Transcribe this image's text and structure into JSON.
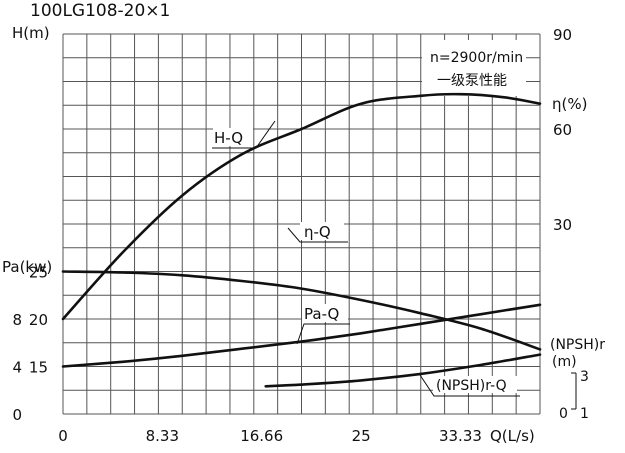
{
  "chart_data": {
    "type": "line",
    "title": "100LG108-20×1",
    "annotation": [
      "n=2900r/min",
      "一级泵性能"
    ],
    "x_axis": {
      "label": "Q(L/s)",
      "range": [
        0,
        40
      ],
      "ticks": [
        0,
        8.33,
        16.66,
        25,
        33.33
      ],
      "tick_labels": [
        "0",
        "8.33",
        "16.66",
        "25",
        "33.33"
      ]
    },
    "left_axis_head": {
      "label": "H(m)",
      "ticks": [
        15,
        20,
        25
      ],
      "tick_labels": [
        "15",
        "20",
        "25"
      ]
    },
    "left_axis_power": {
      "label": "Pa(kw)",
      "ticks": [
        0,
        4,
        8
      ],
      "tick_labels": [
        "0",
        "4",
        "8"
      ]
    },
    "right_axis_eff": {
      "label": "η(%)",
      "ticks": [
        30,
        60,
        90
      ],
      "tick_labels": [
        "30",
        "60",
        "90"
      ]
    },
    "right_axis_npsh": {
      "label_line1": "(NPSH)r",
      "label_line2": "(m)",
      "tick_labels": [
        "3",
        "0",
        "1"
      ]
    },
    "series": [
      {
        "name": "H-Q",
        "unit": "m",
        "x": [
          0,
          5,
          10,
          15,
          20,
          25,
          30,
          35,
          40
        ],
        "y": [
          25,
          24.9,
          24.6,
          24.0,
          23.2,
          22.0,
          20.6,
          19.0,
          16.8
        ]
      },
      {
        "name": "η-Q",
        "unit": "%",
        "x": [
          0,
          5,
          10,
          15,
          20,
          25,
          30,
          33.33,
          37,
          40
        ],
        "y": [
          0,
          21,
          39,
          52,
          60,
          68,
          70.5,
          71,
          70,
          68
        ]
      },
      {
        "name": "Pa-Q",
        "unit": "kw",
        "x": [
          0,
          5,
          10,
          15,
          20,
          25,
          30,
          35,
          40
        ],
        "y": [
          4.0,
          4.4,
          4.9,
          5.5,
          6.1,
          6.8,
          7.6,
          8.4,
          9.2
        ]
      },
      {
        "name": "(NPSH)r-Q",
        "unit": "m",
        "x": [
          17,
          20,
          25,
          30,
          35,
          40
        ],
        "y": [
          2.33,
          2.48,
          2.83,
          3.38,
          4.13,
          5.0
        ]
      }
    ]
  }
}
